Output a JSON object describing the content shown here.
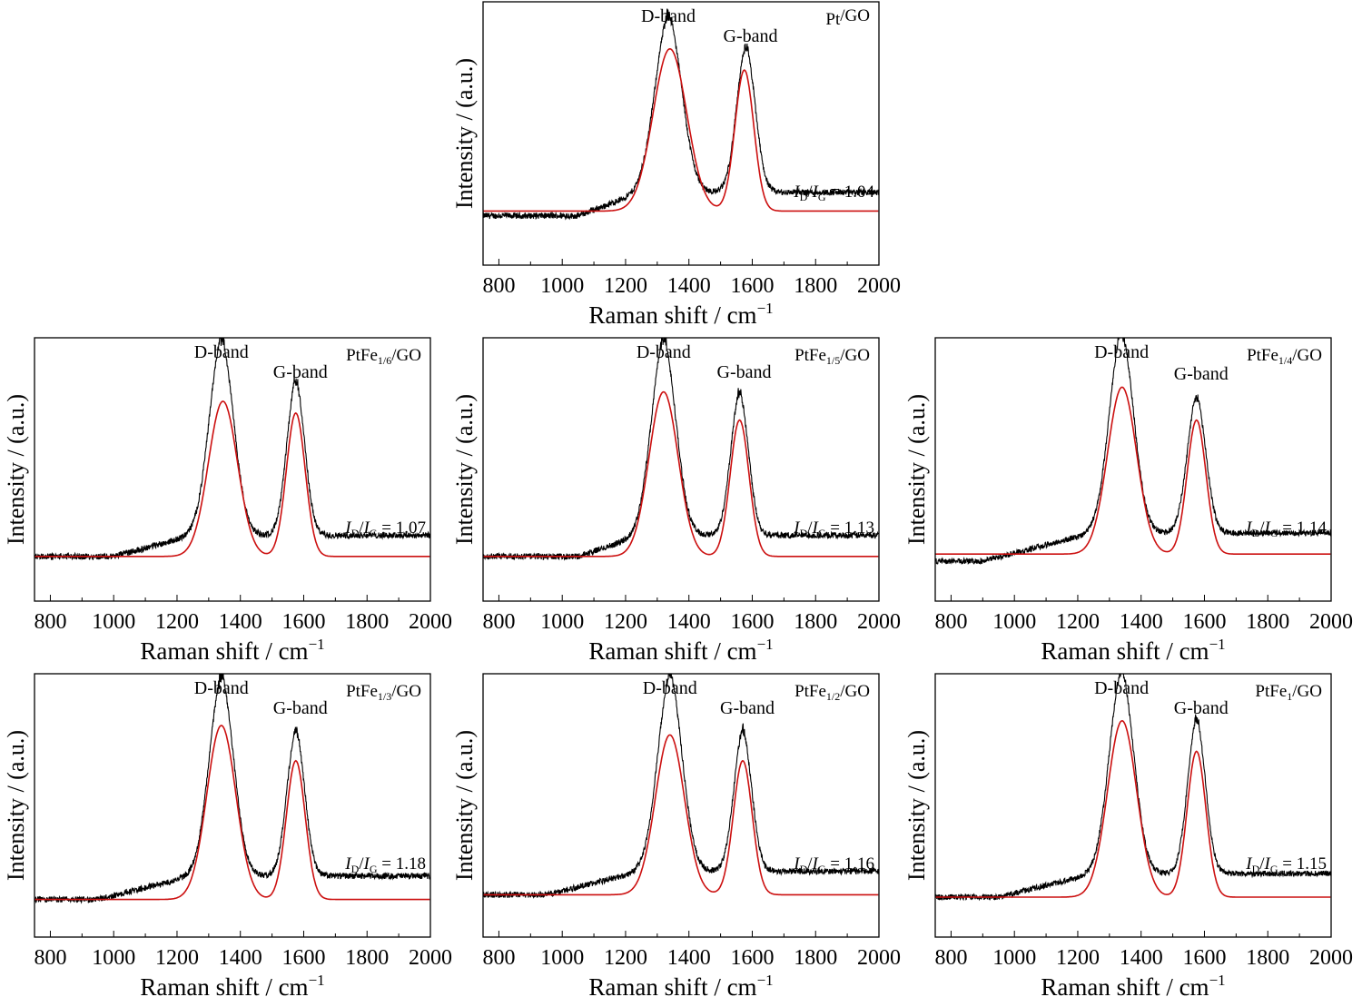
{
  "colors": {
    "measured": "#000000",
    "fit": "#cc1010",
    "axis": "#000000"
  },
  "chart_data": [
    {
      "type": "line",
      "sample_label": "Pt/GO",
      "sample_prefix": "Pt",
      "sample_sub": "",
      "sample_suffix": "/GO",
      "ratio_value": "1.04",
      "d_band_label": "D-band",
      "g_band_label": "G-band",
      "xlabel": "Raman shift / cm",
      "xlabel_sup": "−1",
      "ylabel": "Intensity / (a.u.)",
      "xlim": [
        750,
        2000
      ],
      "ylim": [
        0,
        1.12
      ],
      "xticks": [
        "800",
        "1000",
        "1200",
        "1400",
        "1600",
        "1800",
        "2000"
      ],
      "series": [
        {
          "kind": "measured",
          "baseline": 0.21,
          "bg_start": 1050,
          "bg_rise": 0.1,
          "d_pos": 1335,
          "d_amp": 0.73,
          "d_width": 60,
          "g_pos": 1580,
          "g_amp": 0.6,
          "g_width": 42,
          "noise": 0.013
        },
        {
          "kind": "fit",
          "baseline": 0.23,
          "d_pos": 1340,
          "d_amp": 0.69,
          "d_width": 75,
          "g_pos": 1575,
          "g_amp": 0.6,
          "g_width": 42
        }
      ]
    },
    {
      "type": "line",
      "sample_label": "PtFe1/6/GO",
      "sample_prefix": "PtFe",
      "sample_sub": "1/6",
      "sample_suffix": "/GO",
      "ratio_value": "1.07",
      "d_band_label": "D-band",
      "g_band_label": "G-band",
      "xlabel": "Raman shift / cm",
      "xlabel_sup": "−1",
      "ylabel": "Intensity / (a.u.)",
      "xlim": [
        750,
        2000
      ],
      "ylim": [
        0,
        1.12
      ],
      "xticks": [
        "800",
        "1000",
        "1200",
        "1400",
        "1600",
        "1800",
        "2000"
      ],
      "series": [
        {
          "kind": "measured",
          "baseline": 0.19,
          "bg_start": 1000,
          "bg_rise": 0.09,
          "d_pos": 1340,
          "d_amp": 0.81,
          "d_width": 55,
          "g_pos": 1575,
          "g_amp": 0.64,
          "g_width": 40,
          "noise": 0.013
        },
        {
          "kind": "fit",
          "baseline": 0.19,
          "d_pos": 1345,
          "d_amp": 0.66,
          "d_width": 65,
          "g_pos": 1575,
          "g_amp": 0.61,
          "g_width": 42
        }
      ]
    },
    {
      "type": "line",
      "sample_label": "PtFe1/5/GO",
      "sample_prefix": "PtFe",
      "sample_sub": "1/5",
      "sample_suffix": "/GO",
      "ratio_value": "1.13",
      "d_band_label": "D-band",
      "g_band_label": "G-band",
      "xlabel": "Raman shift / cm",
      "xlabel_sup": "−1",
      "ylabel": "Intensity / (a.u.)",
      "xlim": [
        750,
        2000
      ],
      "ylim": [
        0,
        1.12
      ],
      "xticks": [
        "800",
        "1000",
        "1200",
        "1400",
        "1600",
        "1800",
        "2000"
      ],
      "series": [
        {
          "kind": "measured",
          "baseline": 0.19,
          "bg_start": 1050,
          "bg_rise": 0.09,
          "d_pos": 1320,
          "d_amp": 0.81,
          "d_width": 55,
          "g_pos": 1560,
          "g_amp": 0.59,
          "g_width": 40,
          "noise": 0.013
        },
        {
          "kind": "fit",
          "baseline": 0.19,
          "d_pos": 1320,
          "d_amp": 0.7,
          "d_width": 65,
          "g_pos": 1560,
          "g_amp": 0.58,
          "g_width": 42
        }
      ]
    },
    {
      "type": "line",
      "sample_label": "PtFe1/4/GO",
      "sample_prefix": "PtFe",
      "sample_sub": "1/4",
      "sample_suffix": "/GO",
      "ratio_value": "1.14",
      "d_band_label": "D-band",
      "g_band_label": "G-band",
      "xlabel": "Raman shift / cm",
      "xlabel_sup": "−1",
      "ylabel": "Intensity / (a.u.)",
      "xlim": [
        750,
        2000
      ],
      "ylim": [
        0,
        1.12
      ],
      "xticks": [
        "800",
        "1000",
        "1200",
        "1400",
        "1600",
        "1800",
        "2000"
      ],
      "series": [
        {
          "kind": "measured",
          "baseline": 0.17,
          "bg_start": 900,
          "bg_rise": 0.12,
          "d_pos": 1338,
          "d_amp": 0.83,
          "d_width": 55,
          "g_pos": 1575,
          "g_amp": 0.56,
          "g_width": 42,
          "noise": 0.012
        },
        {
          "kind": "fit",
          "baseline": 0.2,
          "d_pos": 1340,
          "d_amp": 0.71,
          "d_width": 65,
          "g_pos": 1575,
          "g_amp": 0.57,
          "g_width": 42
        }
      ]
    },
    {
      "type": "line",
      "sample_label": "PtFe1/3/GO",
      "sample_prefix": "PtFe",
      "sample_sub": "1/3",
      "sample_suffix": "/GO",
      "ratio_value": "1.18",
      "d_band_label": "D-band",
      "g_band_label": "G-band",
      "xlabel": "Raman shift / cm",
      "xlabel_sup": "−1",
      "ylabel": "Intensity / (a.u.)",
      "xlim": [
        750,
        2000
      ],
      "ylim": [
        0,
        1.12
      ],
      "xticks": [
        "800",
        "1000",
        "1200",
        "1400",
        "1600",
        "1800",
        "2000"
      ],
      "series": [
        {
          "kind": "measured",
          "baseline": 0.16,
          "bg_start": 950,
          "bg_rise": 0.1,
          "d_pos": 1340,
          "d_amp": 0.82,
          "d_width": 55,
          "g_pos": 1575,
          "g_amp": 0.6,
          "g_width": 40,
          "noise": 0.013
        },
        {
          "kind": "fit",
          "baseline": 0.16,
          "d_pos": 1340,
          "d_amp": 0.74,
          "d_width": 65,
          "g_pos": 1575,
          "g_amp": 0.59,
          "g_width": 42
        }
      ]
    },
    {
      "type": "line",
      "sample_label": "PtFe1/2/GO",
      "sample_prefix": "PtFe",
      "sample_sub": "1/2",
      "sample_suffix": "/GO",
      "ratio_value": "1.16",
      "d_band_label": "D-band",
      "g_band_label": "G-band",
      "xlabel": "Raman shift / cm",
      "xlabel_sup": "−1",
      "ylabel": "Intensity / (a.u.)",
      "xlim": [
        750,
        2000
      ],
      "ylim": [
        0,
        1.12
      ],
      "xticks": [
        "800",
        "1000",
        "1200",
        "1400",
        "1600",
        "1800",
        "2000"
      ],
      "series": [
        {
          "kind": "measured",
          "baseline": 0.18,
          "bg_start": 950,
          "bg_rise": 0.1,
          "d_pos": 1340,
          "d_amp": 0.81,
          "d_width": 55,
          "g_pos": 1570,
          "g_amp": 0.58,
          "g_width": 40,
          "noise": 0.013
        },
        {
          "kind": "fit",
          "baseline": 0.18,
          "d_pos": 1340,
          "d_amp": 0.68,
          "d_width": 65,
          "g_pos": 1570,
          "g_amp": 0.57,
          "g_width": 42
        }
      ]
    },
    {
      "type": "line",
      "sample_label": "PtFe1/GO",
      "sample_prefix": "PtFe",
      "sample_sub": "1",
      "sample_suffix": "/GO",
      "ratio_value": "1.15",
      "d_band_label": "D-band",
      "g_band_label": "G-band",
      "xlabel": "Raman shift / cm",
      "xlabel_sup": "−1",
      "ylabel": "Intensity / (a.u.)",
      "xlim": [
        750,
        2000
      ],
      "ylim": [
        0,
        1.12
      ],
      "xticks": [
        "800",
        "1000",
        "1200",
        "1400",
        "1600",
        "1800",
        "2000"
      ],
      "series": [
        {
          "kind": "measured",
          "baseline": 0.17,
          "bg_start": 950,
          "bg_rise": 0.1,
          "d_pos": 1338,
          "d_amp": 0.84,
          "d_width": 55,
          "g_pos": 1575,
          "g_amp": 0.64,
          "g_width": 40,
          "noise": 0.012
        },
        {
          "kind": "fit",
          "baseline": 0.17,
          "d_pos": 1340,
          "d_amp": 0.75,
          "d_width": 65,
          "g_pos": 1575,
          "g_amp": 0.62,
          "g_width": 42
        }
      ]
    }
  ]
}
